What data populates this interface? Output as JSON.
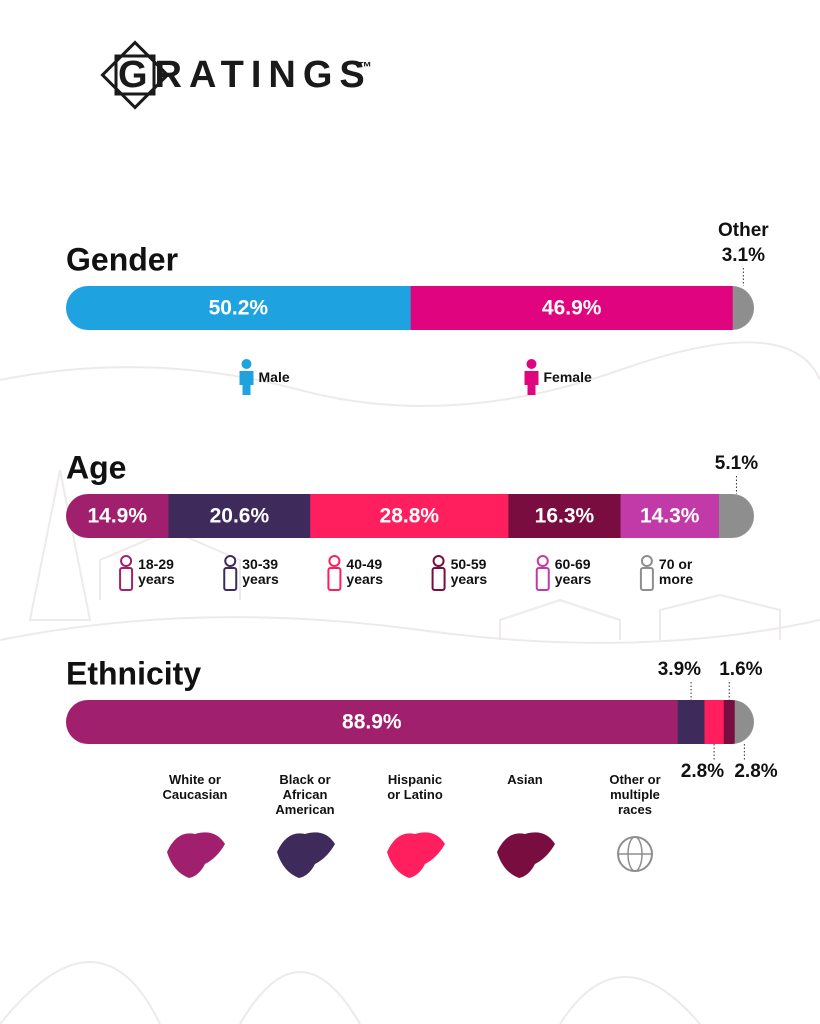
{
  "logo": {
    "text": "GRATINGS",
    "mark": "™"
  },
  "chart_data": [
    {
      "type": "stacked-bar",
      "title": "Gender",
      "series": [
        {
          "name": "Male",
          "color": "#1ea3e0",
          "values": [
            50.2
          ],
          "value_labels": [
            "50.2%"
          ]
        },
        {
          "name": "Female",
          "color": "#e0047f",
          "values": [
            46.9
          ],
          "value_labels": [
            "46.9%"
          ]
        }
      ],
      "remainder": {
        "name": "Other",
        "color": "#8e8e8e",
        "values": [
          3.1
        ],
        "value_labels": [
          "3.1%"
        ]
      }
    },
    {
      "type": "stacked-bar",
      "title": "Age",
      "series": [
        {
          "name": "18-29 years",
          "color": "#a0206e",
          "values": [
            14.9
          ],
          "value_labels": [
            "14.9%"
          ]
        },
        {
          "name": "30-39 years",
          "color": "#3f2a5c",
          "values": [
            20.6
          ],
          "value_labels": [
            "20.6%"
          ]
        },
        {
          "name": "40-49 years",
          "color": "#ff1f5e",
          "values": [
            28.8
          ],
          "value_labels": [
            "28.8%"
          ]
        },
        {
          "name": "50-59 years",
          "color": "#7a0d3f",
          "values": [
            16.3
          ],
          "value_labels": [
            "16.3%"
          ]
        },
        {
          "name": "60-69 years",
          "color": "#c13aa8",
          "values": [
            14.3
          ],
          "value_labels": [
            "14.3%"
          ]
        },
        {
          "name": "70 or more",
          "color": "#8e8e8e",
          "values": [
            5.1
          ],
          "value_labels": [
            "5.1%"
          ]
        }
      ]
    },
    {
      "type": "stacked-bar",
      "title": "Ethnicity",
      "series": [
        {
          "name": "White or Caucasian",
          "color": "#a0206e",
          "values": [
            88.9
          ],
          "value_labels": [
            "88.9%"
          ]
        },
        {
          "name": "Black or African American",
          "color": "#3f2a5c",
          "values": [
            3.9
          ],
          "value_labels": [
            "3.9%"
          ]
        },
        {
          "name": "Hispanic or Latino",
          "color": "#ff1f5e",
          "values": [
            2.8
          ],
          "value_labels": [
            "2.8%"
          ]
        },
        {
          "name": "Asian",
          "color": "#7a0d3f",
          "values": [
            1.6
          ],
          "value_labels": [
            "1.6%"
          ]
        },
        {
          "name": "Other or multiple races",
          "color": "#8e8e8e",
          "values": [
            2.8
          ],
          "value_labels": [
            "2.8%"
          ]
        }
      ]
    }
  ]
}
